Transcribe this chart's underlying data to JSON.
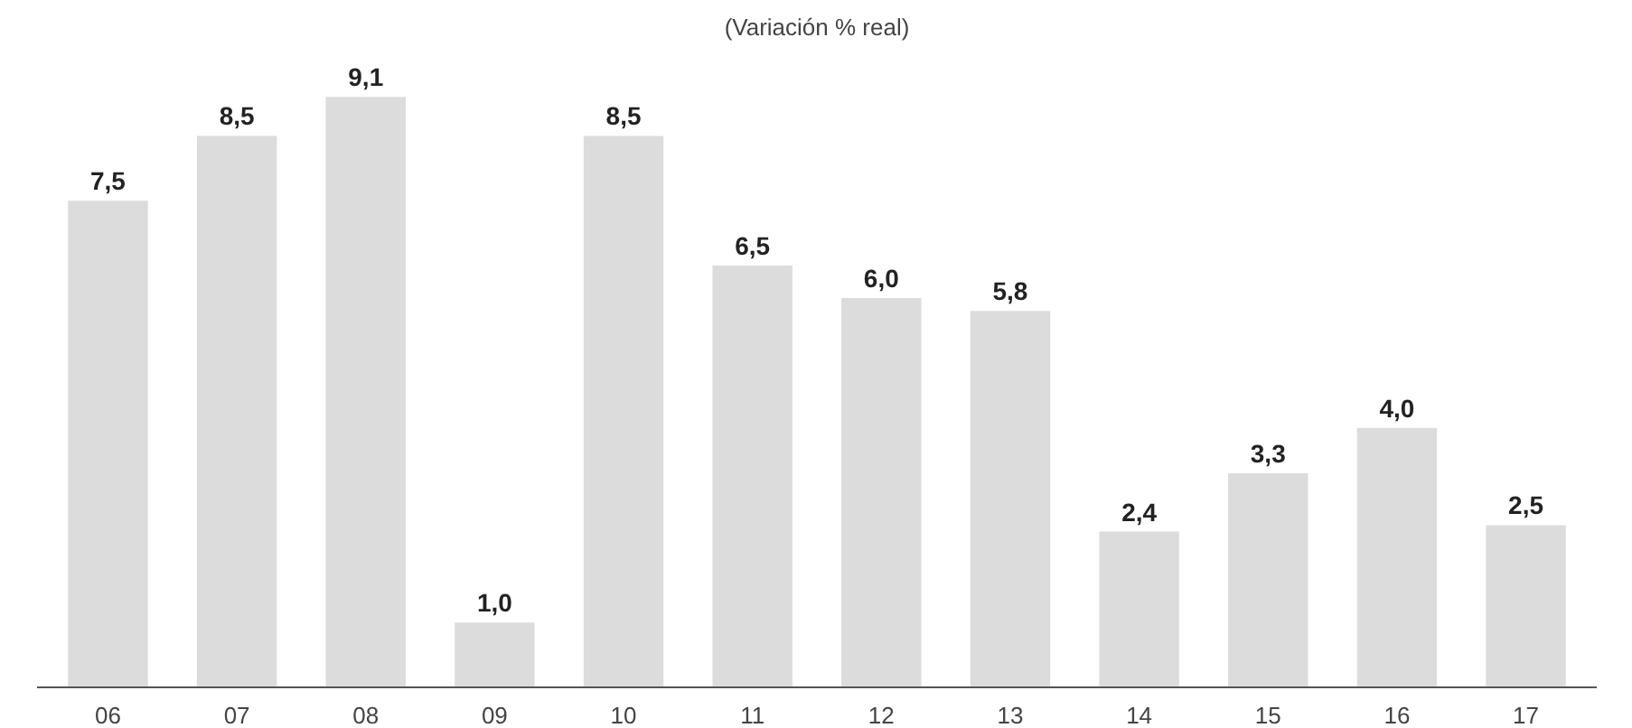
{
  "chart_data": {
    "type": "bar",
    "title": "(Variación % real)",
    "categories": [
      "06",
      "07",
      "08",
      "09",
      "10",
      "11",
      "12",
      "13",
      "14",
      "15",
      "16",
      "17"
    ],
    "values": [
      7.5,
      8.5,
      9.1,
      1.0,
      8.5,
      6.5,
      6.0,
      5.8,
      2.4,
      3.3,
      4.0,
      2.5
    ],
    "value_labels": [
      "7,5",
      "8,5",
      "9,1",
      "1,0",
      "8,5",
      "6,5",
      "6,0",
      "5,8",
      "2,4",
      "3,3",
      "4,0",
      "2,5"
    ],
    "color": "#dcdcdc"
  }
}
